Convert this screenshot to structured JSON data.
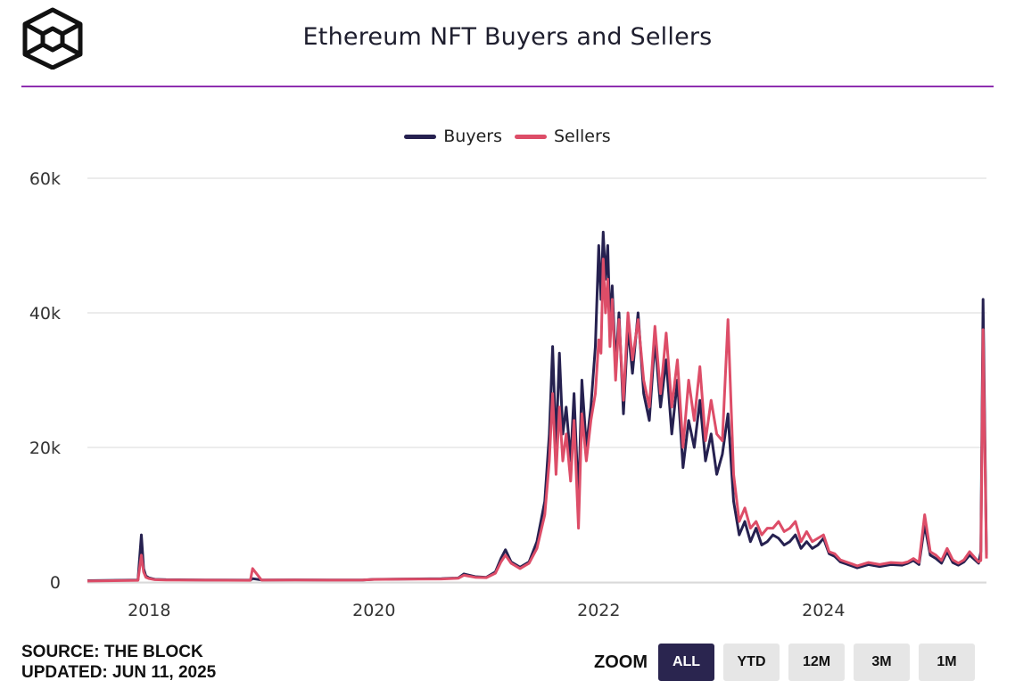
{
  "header": {
    "logo_icon": "the-block-cube-logo-icon",
    "title": "Ethereum NFT Buyers and Sellers"
  },
  "colors": {
    "accent_rule": "#8e2fb0",
    "buyers": "#262150",
    "sellers": "#dd4d68",
    "grid": "#e6e6e6"
  },
  "footer": {
    "source": "SOURCE: THE BLOCK",
    "updated": "UPDATED: JUN 11, 2025"
  },
  "zoom": {
    "label": "ZOOM",
    "buttons": [
      "ALL",
      "YTD",
      "12M",
      "3M",
      "1M"
    ],
    "active": "ALL"
  },
  "chart_data": {
    "type": "line",
    "title": "Ethereum NFT Buyers and Sellers",
    "xlabel": "",
    "ylabel": "",
    "xlim": [
      2017.45,
      2025.45
    ],
    "ylim": [
      0,
      60000
    ],
    "y_ticks": [
      0,
      20000,
      40000,
      60000
    ],
    "y_tick_labels": [
      "0",
      "20k",
      "40k",
      "60k"
    ],
    "x_ticks": [
      2018,
      2020,
      2022,
      2024
    ],
    "x_tick_labels": [
      "2018",
      "2020",
      "2022",
      "2024"
    ],
    "grid": true,
    "legend_position": "top-center",
    "series": [
      {
        "name": "Buyers",
        "x": [
          2017.45,
          2017.9,
          2017.93,
          2017.95,
          2017.97,
          2018.0,
          2018.05,
          2018.15,
          2018.5,
          2018.9,
          2018.92,
          2019.0,
          2019.3,
          2019.6,
          2019.9,
          2020.0,
          2020.3,
          2020.6,
          2020.75,
          2020.8,
          2020.9,
          2021.0,
          2021.08,
          2021.13,
          2021.17,
          2021.22,
          2021.3,
          2021.38,
          2021.45,
          2021.52,
          2021.56,
          2021.59,
          2021.62,
          2021.65,
          2021.68,
          2021.71,
          2021.75,
          2021.78,
          2021.82,
          2021.85,
          2021.89,
          2021.93,
          2021.97,
          2022.0,
          2022.02,
          2022.04,
          2022.06,
          2022.08,
          2022.1,
          2022.12,
          2022.15,
          2022.18,
          2022.22,
          2022.26,
          2022.3,
          2022.35,
          2022.4,
          2022.45,
          2022.5,
          2022.55,
          2022.6,
          2022.65,
          2022.7,
          2022.75,
          2022.8,
          2022.85,
          2022.9,
          2022.95,
          2023.0,
          2023.05,
          2023.1,
          2023.15,
          2023.2,
          2023.25,
          2023.3,
          2023.35,
          2023.4,
          2023.45,
          2023.5,
          2023.55,
          2023.6,
          2023.65,
          2023.7,
          2023.75,
          2023.8,
          2023.85,
          2023.9,
          2023.95,
          2024.0,
          2024.05,
          2024.1,
          2024.15,
          2024.2,
          2024.25,
          2024.3,
          2024.4,
          2024.5,
          2024.6,
          2024.7,
          2024.75,
          2024.8,
          2024.85,
          2024.9,
          2024.95,
          2025.0,
          2025.05,
          2025.1,
          2025.15,
          2025.2,
          2025.25,
          2025.3,
          2025.38,
          2025.4,
          2025.42,
          2025.45
        ],
        "values": [
          200,
          300,
          7000,
          2000,
          900,
          600,
          400,
          350,
          300,
          280,
          500,
          300,
          320,
          300,
          310,
          400,
          450,
          500,
          600,
          1200,
          800,
          700,
          1500,
          3500,
          4800,
          3000,
          2200,
          3000,
          6000,
          12000,
          22000,
          35000,
          20000,
          34000,
          22000,
          26000,
          18000,
          28000,
          12000,
          30000,
          20000,
          26000,
          35000,
          50000,
          42000,
          52000,
          45000,
          50000,
          38000,
          44000,
          32000,
          40000,
          25000,
          38000,
          31000,
          40000,
          28000,
          24000,
          36000,
          26000,
          33000,
          22000,
          30000,
          17000,
          24000,
          20000,
          27000,
          18000,
          22000,
          16000,
          19000,
          25000,
          12000,
          7000,
          9000,
          6000,
          8000,
          5500,
          6000,
          7000,
          6500,
          5500,
          6000,
          7000,
          5000,
          6000,
          5000,
          5500,
          6500,
          4200,
          3800,
          3000,
          2700,
          2400,
          2100,
          2600,
          2300,
          2600,
          2500,
          2800,
          3200,
          2600,
          8500,
          4000,
          3500,
          2800,
          4500,
          2900,
          2500,
          3000,
          4000,
          2800,
          4500,
          42000,
          4000
        ]
      },
      {
        "name": "Sellers",
        "x": [
          2017.45,
          2017.9,
          2017.93,
          2017.95,
          2017.97,
          2018.0,
          2018.05,
          2018.15,
          2018.5,
          2018.9,
          2018.92,
          2019.0,
          2019.3,
          2019.6,
          2019.9,
          2020.0,
          2020.3,
          2020.6,
          2020.75,
          2020.8,
          2020.9,
          2021.0,
          2021.08,
          2021.13,
          2021.17,
          2021.22,
          2021.3,
          2021.38,
          2021.45,
          2021.52,
          2021.56,
          2021.59,
          2021.62,
          2021.65,
          2021.68,
          2021.71,
          2021.75,
          2021.78,
          2021.82,
          2021.85,
          2021.89,
          2021.93,
          2021.97,
          2022.0,
          2022.02,
          2022.04,
          2022.06,
          2022.08,
          2022.1,
          2022.12,
          2022.15,
          2022.18,
          2022.22,
          2022.26,
          2022.3,
          2022.35,
          2022.4,
          2022.45,
          2022.5,
          2022.55,
          2022.6,
          2022.65,
          2022.7,
          2022.75,
          2022.8,
          2022.85,
          2022.9,
          2022.95,
          2023.0,
          2023.05,
          2023.1,
          2023.15,
          2023.2,
          2023.25,
          2023.3,
          2023.35,
          2023.4,
          2023.45,
          2023.5,
          2023.55,
          2023.6,
          2023.65,
          2023.7,
          2023.75,
          2023.8,
          2023.85,
          2023.9,
          2023.95,
          2024.0,
          2024.05,
          2024.1,
          2024.15,
          2024.2,
          2024.25,
          2024.3,
          2024.4,
          2024.5,
          2024.6,
          2024.7,
          2024.75,
          2024.8,
          2024.85,
          2024.9,
          2024.95,
          2025.0,
          2025.05,
          2025.1,
          2025.15,
          2025.2,
          2025.25,
          2025.3,
          2025.38,
          2025.4,
          2025.42,
          2025.45
        ],
        "values": [
          150,
          250,
          4000,
          1500,
          700,
          500,
          350,
          300,
          280,
          250,
          2000,
          280,
          300,
          280,
          300,
          380,
          420,
          450,
          550,
          1000,
          700,
          650,
          1300,
          3000,
          4000,
          2800,
          2000,
          2800,
          5000,
          10000,
          18000,
          28000,
          16000,
          26000,
          18000,
          22000,
          15000,
          24000,
          8000,
          25000,
          18000,
          24000,
          28000,
          36000,
          34000,
          48000,
          40000,
          45000,
          35000,
          42000,
          30000,
          39000,
          27000,
          40000,
          33000,
          39000,
          30000,
          26000,
          38000,
          28000,
          37000,
          26000,
          33000,
          20000,
          30000,
          24000,
          32000,
          21000,
          27000,
          22000,
          21000,
          39000,
          16000,
          9000,
          11000,
          8000,
          9000,
          7000,
          8000,
          8000,
          9000,
          7500,
          8000,
          9000,
          6000,
          7500,
          6000,
          6500,
          7000,
          4500,
          4200,
          3300,
          3000,
          2700,
          2400,
          2900,
          2600,
          2900,
          2800,
          3000,
          3500,
          2900,
          10000,
          4500,
          4000,
          3200,
          5000,
          3300,
          2800,
          3300,
          4500,
          3000,
          3200,
          37500,
          3500
        ]
      }
    ]
  }
}
